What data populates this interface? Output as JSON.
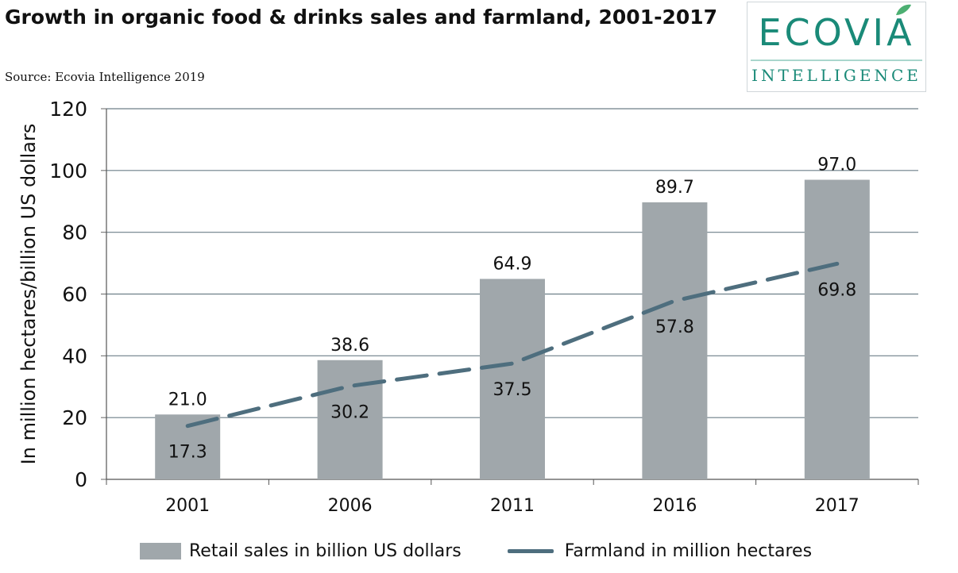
{
  "title": "Growth in organic food & drinks sales and farmland, 2001-2017",
  "source": "Source: Ecovia Intelligence 2019",
  "logo": {
    "word": "ECOVIA",
    "sub": "INTELLIGENCE",
    "color": "#1a8a78"
  },
  "chart_data": {
    "type": "bar",
    "title": "Growth in organic food & drinks sales and farmland, 2001-2017",
    "ylabel": "In million hectares/billion US dollars",
    "xlabel": "",
    "ylim": [
      0,
      120
    ],
    "yticks": [
      0,
      20,
      40,
      60,
      80,
      100,
      120
    ],
    "grid": true,
    "legend_position": "bottom",
    "categories": [
      "2001",
      "2006",
      "2011",
      "2016",
      "2017"
    ],
    "series": [
      {
        "name": "Retail sales in billion US dollars",
        "type": "bar",
        "color": "#a0a7ab",
        "values": [
          21.0,
          38.6,
          64.9,
          89.7,
          97.0
        ],
        "labels": [
          "21.0",
          "38.6",
          "64.9",
          "89.7",
          "97.0"
        ]
      },
      {
        "name": "Farmland in million hectares",
        "type": "line",
        "style": "dashed",
        "color": "#4e6e7e",
        "values": [
          17.3,
          30.2,
          37.5,
          57.8,
          69.8
        ],
        "labels": [
          "17.3",
          "30.2",
          "37.5",
          "57.8",
          "69.8"
        ]
      }
    ]
  }
}
